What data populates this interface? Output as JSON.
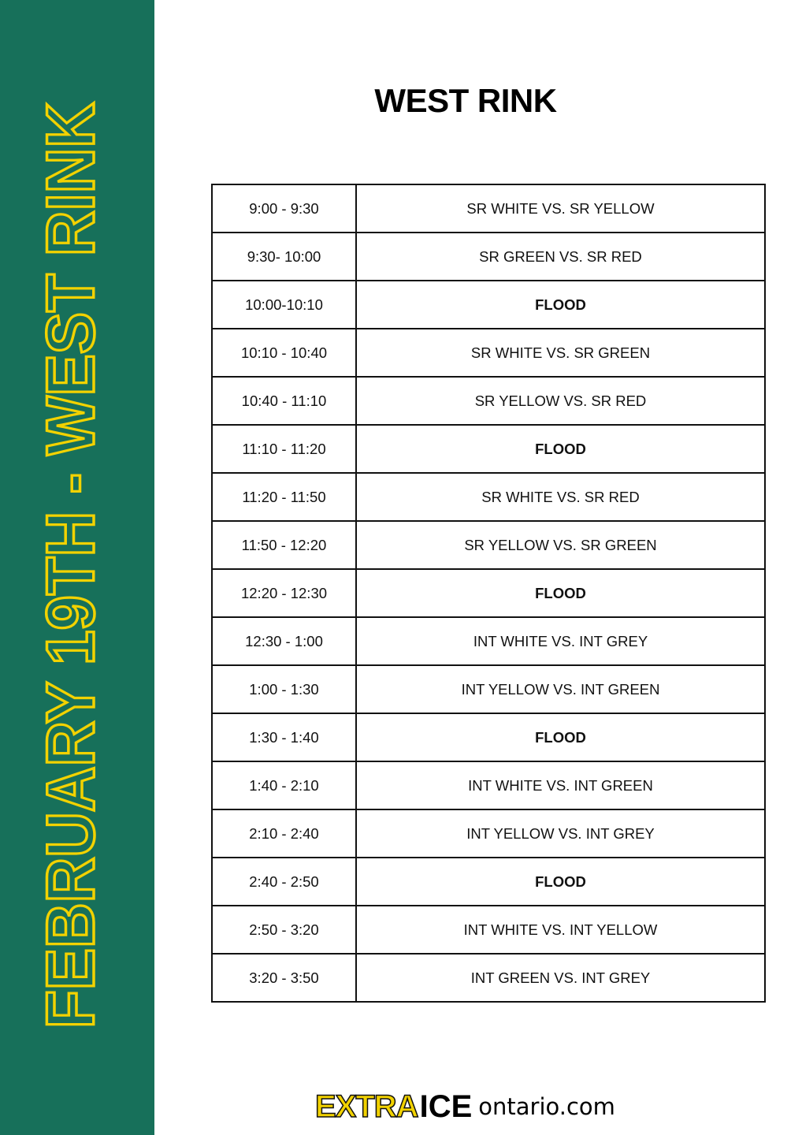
{
  "sidebar": {
    "text": "FEBRUARY 19TH - WEST RINK",
    "bg_color": "#17705a",
    "text_color": "#f2d200"
  },
  "title": "WEST RINK",
  "schedule": [
    {
      "time": "9:00 - 9:30",
      "event": "SR WHITE VS. SR YELLOW",
      "flood": false
    },
    {
      "time": "9:30- 10:00",
      "event": "SR GREEN VS. SR RED",
      "flood": false
    },
    {
      "time": "10:00-10:10",
      "event": "FLOOD",
      "flood": true
    },
    {
      "time": "10:10 - 10:40",
      "event": "SR WHITE VS. SR GREEN",
      "flood": false
    },
    {
      "time": "10:40 - 11:10",
      "event": "SR YELLOW VS. SR RED",
      "flood": false
    },
    {
      "time": "11:10 - 11:20",
      "event": "FLOOD",
      "flood": true
    },
    {
      "time": "11:20 - 11:50",
      "event": "SR WHITE VS. SR RED",
      "flood": false
    },
    {
      "time": "11:50 - 12:20",
      "event": "SR YELLOW VS. SR GREEN",
      "flood": false
    },
    {
      "time": "12:20 - 12:30",
      "event": "FLOOD",
      "flood": true
    },
    {
      "time": "12:30 - 1:00",
      "event": "INT WHITE VS. INT GREY",
      "flood": false
    },
    {
      "time": "1:00 - 1:30",
      "event": "INT YELLOW VS. INT GREEN",
      "flood": false
    },
    {
      "time": "1:30 - 1:40",
      "event": "FLOOD",
      "flood": true
    },
    {
      "time": "1:40 - 2:10",
      "event": "INT WHITE VS. INT GREEN",
      "flood": false
    },
    {
      "time": "2:10 - 2:40",
      "event": "INT YELLOW VS. INT GREY",
      "flood": false
    },
    {
      "time": "2:40 - 2:50",
      "event": "FLOOD",
      "flood": true
    },
    {
      "time": "2:50 - 3:20",
      "event": "INT WHITE VS. INT YELLOW",
      "flood": false
    },
    {
      "time": "3:20 - 3:50",
      "event": "INT GREEN VS. INT GREY",
      "flood": false
    }
  ],
  "logo": {
    "extra": "EXTRA",
    "ice": "ICE",
    "domain": "ontario.com"
  }
}
